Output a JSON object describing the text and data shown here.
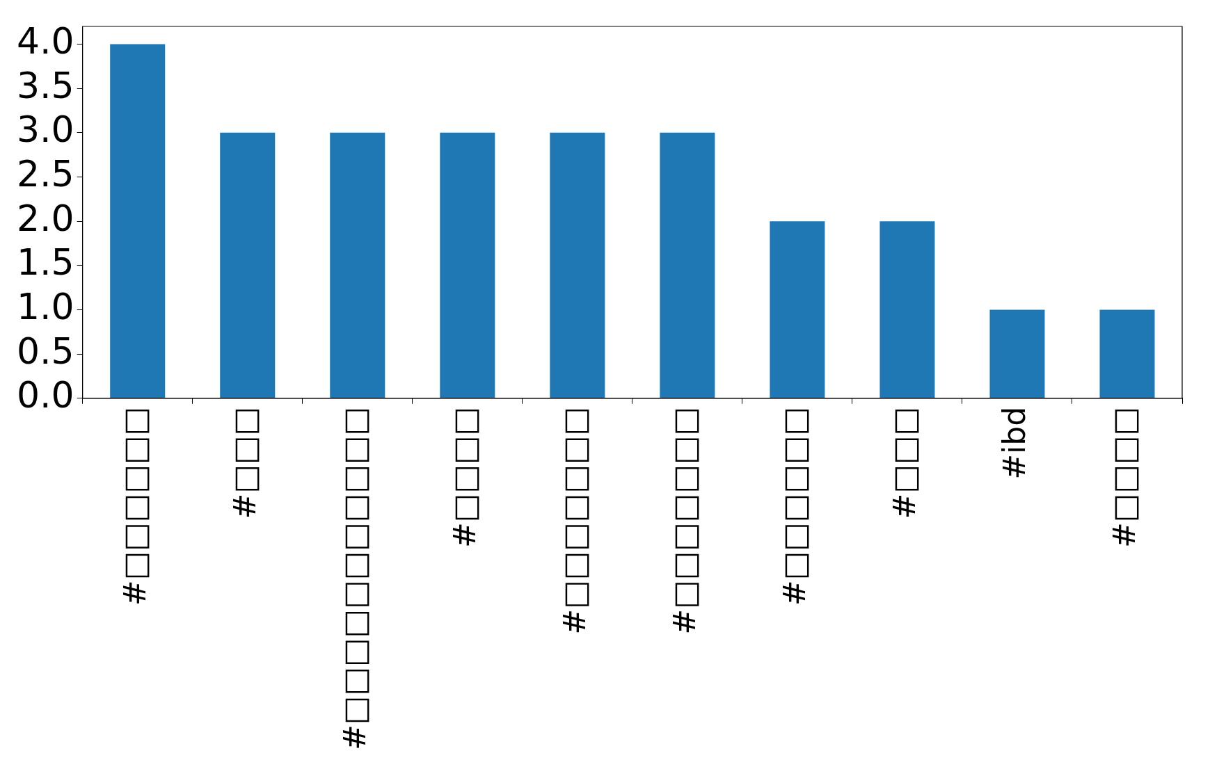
{
  "chart_data": {
    "type": "bar",
    "categories": [
      "#□□□□□□",
      "#□□□",
      "#□□□□□□□□□□□",
      "#□□□□",
      "#□□□□□□□",
      "#□□□□□□□",
      "#□□□□□□",
      "#□□□",
      "#ibd",
      "#□□□□"
    ],
    "values": [
      4,
      3,
      3,
      3,
      3,
      3,
      2,
      2,
      1,
      1
    ],
    "color": "#1f77b4",
    "ylim": [
      0,
      4.2
    ],
    "yticks": [
      {
        "value": 0,
        "label": "0.0"
      },
      {
        "value": 0.5,
        "label": "0.5"
      },
      {
        "value": 1,
        "label": "1.0"
      },
      {
        "value": 1.5,
        "label": "1.5"
      },
      {
        "value": 2,
        "label": "2.0"
      },
      {
        "value": 2.5,
        "label": "2.5"
      },
      {
        "value": 3,
        "label": "3.0"
      },
      {
        "value": 3.5,
        "label": "3.5"
      },
      {
        "value": 4,
        "label": "4.0"
      }
    ],
    "grid": false,
    "legend": false
  }
}
